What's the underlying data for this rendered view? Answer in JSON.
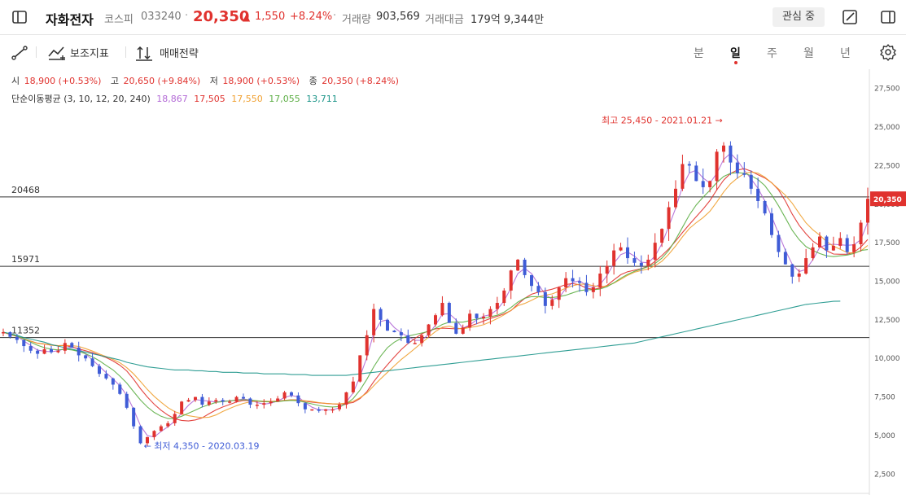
{
  "header": {
    "name": "자화전자",
    "market": "코스피",
    "code": "033240",
    "price": "20,350",
    "change_arrow": "▲",
    "change": "1,550",
    "change_pct": "+8.24%",
    "volume_label": "거래량",
    "volume": "903,569",
    "amount_label": "거래대금",
    "amount": "179억 9,344만",
    "fav_label": "관심 중"
  },
  "toolbar": {
    "indicator_label": "보조지표",
    "strategy_label": "매매전략",
    "periods": [
      "분",
      "일",
      "주",
      "월",
      "년"
    ],
    "selected_period": "일"
  },
  "ohlc": {
    "open_label": "시",
    "open": "18,900 (+0.53%)",
    "high_label": "고",
    "high": "20,650 (+9.84%)",
    "low_label": "저",
    "low": "18,900 (+0.53%)",
    "close_label": "종",
    "close": "20,350 (+8.24%)"
  },
  "ma": {
    "label": "단순이동평균 (3, 10, 12, 20, 240)",
    "values": [
      "18,867",
      "17,505",
      "17,550",
      "17,055",
      "13,711"
    ],
    "colors": [
      "#b36ad6",
      "#e0322e",
      "#f0a030",
      "#5cae44",
      "#1a9488"
    ]
  },
  "chart_data": {
    "type": "line",
    "title": "",
    "xlabel": "",
    "ylabel": "",
    "ylim": [
      1250,
      28750
    ],
    "y_ticks": [
      "27,500",
      "25,000",
      "22,500",
      "20,000",
      "17,500",
      "15,000",
      "12,500",
      "10,000",
      "7,500",
      "5,000",
      "2,500"
    ],
    "y_tick_values": [
      27500,
      25000,
      22500,
      20000,
      17500,
      15000,
      12500,
      10000,
      7500,
      5000,
      2500
    ],
    "current_price": 20350,
    "current_price_label": "20,350",
    "horizontal_lines": [
      {
        "label": "20468",
        "value": 20468
      },
      {
        "label": "15971",
        "value": 15971
      },
      {
        "label": "11352",
        "value": 11352
      }
    ],
    "annotations": [
      {
        "text": "최고 25,450 - 2021.01.21",
        "value": 25450,
        "color": "#e0322e"
      },
      {
        "text": "최저 4,350 - 2020.03.19",
        "value": 4350,
        "color": "#3f5cd6"
      }
    ],
    "series": [
      {
        "name": "종가",
        "values": [
          11700,
          11400,
          11200,
          10800,
          10500,
          10300,
          10600,
          10400,
          10500,
          11000,
          10700,
          10200,
          10000,
          9500,
          9000,
          8700,
          8300,
          7700,
          6800,
          5600,
          4500,
          4900,
          5300,
          5600,
          5800,
          6400,
          7200,
          7300,
          7500,
          7000,
          7200,
          7300,
          7200,
          7200,
          7500,
          7400,
          7000,
          7000,
          7100,
          7200,
          7400,
          7800,
          7600,
          7100,
          6700,
          6700,
          6600,
          6700,
          6700,
          7000,
          7800,
          8500,
          10200,
          11500,
          13200,
          12500,
          11800,
          11700,
          11500,
          11000,
          11000,
          11500,
          12200,
          12800,
          13600,
          12300,
          11600,
          12000,
          12900,
          12600,
          12700,
          13200,
          13600,
          14400,
          15700,
          16400,
          15400,
          14700,
          14300,
          13400,
          13800,
          14600,
          15200,
          15000,
          14900,
          14300,
          14600,
          15500,
          16000,
          17000,
          17200,
          16500,
          16200,
          16000,
          16400,
          17500,
          18400,
          19800,
          21000,
          22600,
          22500,
          21500,
          21100,
          21500,
          23400,
          23800,
          22700,
          22000,
          21900,
          21000,
          20200,
          19400,
          18000,
          16900,
          16100,
          15300,
          15500,
          16500,
          17200,
          17900,
          17000,
          17300,
          17800,
          16900,
          17400,
          18800,
          20350
        ]
      },
      {
        "name": "MA20",
        "values": [
          11700,
          11600,
          11450,
          11250,
          11050,
          10850,
          10700,
          10600,
          10550,
          10600,
          10550,
          10450,
          10300,
          10100,
          9850,
          9550,
          9250,
          8850,
          8400,
          7850,
          7300,
          6850,
          6500,
          6250,
          6100,
          6100,
          6250,
          6450,
          6650,
          6850,
          7000,
          7150,
          7200,
          7250,
          7300,
          7320,
          7300,
          7250,
          7200,
          7180,
          7200,
          7250,
          7280,
          7250,
          7150,
          7050,
          6950,
          6880,
          6850,
          6880,
          7050,
          7400,
          7950,
          8650,
          9450,
          10150,
          10700,
          11050,
          11300,
          11450,
          11550,
          11650,
          11750,
          11950,
          12200,
          12350,
          12350,
          12350,
          12450,
          12550,
          12600,
          12700,
          12800,
          13000,
          13300,
          13650,
          13900,
          14000,
          14000,
          13950,
          13950,
          14000,
          14100,
          14250,
          14400,
          14450,
          14450,
          14500,
          14650,
          14900,
          15200,
          15450,
          15650,
          15800,
          15950,
          16150,
          16500,
          17000,
          17700,
          18500,
          19300,
          19950,
          20450,
          20900,
          21400,
          21800,
          22000,
          22050,
          22000,
          21850,
          21600,
          21200,
          20600,
          19900,
          19100,
          18300,
          17700,
          17250,
          17000,
          16800,
          16650,
          16600,
          16650,
          16700,
          16800,
          17000,
          17055
        ]
      },
      {
        "name": "MA240",
        "values": [
          11700,
          11600,
          11500,
          11350,
          11250,
          11150,
          11050,
          10900,
          10800,
          10700,
          10600,
          10500,
          10400,
          10300,
          10200,
          10100,
          10000,
          9900,
          9750,
          9650,
          9550,
          9450,
          9400,
          9350,
          9300,
          9250,
          9250,
          9250,
          9200,
          9200,
          9150,
          9150,
          9100,
          9100,
          9100,
          9050,
          9050,
          9050,
          9000,
          9000,
          9000,
          9000,
          8950,
          8950,
          8950,
          8900,
          8900,
          8900,
          8900,
          8900,
          8900,
          8950,
          9000,
          9050,
          9100,
          9150,
          9200,
          9250,
          9300,
          9350,
          9400,
          9450,
          9500,
          9550,
          9600,
          9650,
          9700,
          9750,
          9800,
          9850,
          9900,
          9950,
          10000,
          10050,
          10100,
          10150,
          10200,
          10250,
          10300,
          10350,
          10400,
          10450,
          10500,
          10550,
          10600,
          10650,
          10700,
          10750,
          10800,
          10850,
          10900,
          10950,
          11000,
          11100,
          11200,
          11300,
          11400,
          11500,
          11600,
          11700,
          11800,
          11900,
          12000,
          12100,
          12200,
          12300,
          12400,
          12500,
          12600,
          12700,
          12800,
          12900,
          13000,
          13100,
          13200,
          13300,
          13400,
          13500,
          13550,
          13600,
          13650,
          13700,
          13711
        ]
      }
    ]
  }
}
